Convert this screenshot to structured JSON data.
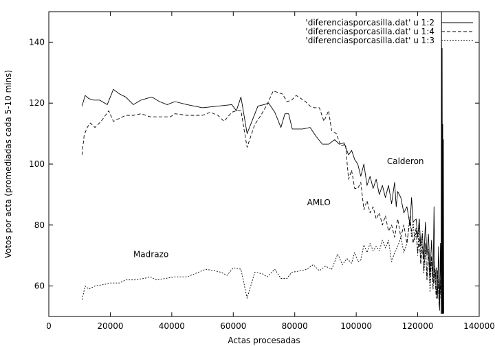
{
  "chart_data": {
    "type": "line",
    "title": "",
    "xlabel": "Actas procesadas",
    "ylabel": "Votos por acta (promediadas cada 5-10 mins)",
    "xlim": [
      0,
      140000
    ],
    "ylim": [
      50,
      150
    ],
    "xticks": [
      0,
      20000,
      40000,
      60000,
      80000,
      100000,
      120000,
      140000
    ],
    "yticks": [
      60,
      80,
      100,
      120,
      140
    ],
    "grid": false,
    "legend_position": "top-right",
    "series": [
      {
        "name": "'diferenciasporcasilla.dat' u 1:2",
        "dash": "solid",
        "points": [
          [
            10800,
            119
          ],
          [
            11800,
            122.5
          ],
          [
            13000,
            121.5
          ],
          [
            14500,
            121
          ],
          [
            16500,
            121
          ],
          [
            19000,
            119.5
          ],
          [
            21000,
            124.5
          ],
          [
            23000,
            123
          ],
          [
            25000,
            122
          ],
          [
            27500,
            119.5
          ],
          [
            30000,
            121
          ],
          [
            33500,
            122
          ],
          [
            36000,
            120.5
          ],
          [
            38500,
            119.5
          ],
          [
            41000,
            120.5
          ],
          [
            45000,
            119.5
          ],
          [
            50000,
            118.5
          ],
          [
            55000,
            119
          ],
          [
            59500,
            119.5
          ],
          [
            61000,
            117.5
          ],
          [
            62500,
            122
          ],
          [
            64500,
            110
          ],
          [
            68000,
            119
          ],
          [
            70000,
            119.5
          ],
          [
            71500,
            120
          ],
          [
            73500,
            117
          ],
          [
            75500,
            112
          ],
          [
            76800,
            116.5
          ],
          [
            78000,
            116.5
          ],
          [
            79200,
            111.5
          ],
          [
            82500,
            111.5
          ],
          [
            85000,
            112
          ],
          [
            87000,
            109
          ],
          [
            89000,
            106.5
          ],
          [
            91000,
            106.5
          ],
          [
            93000,
            108
          ],
          [
            94500,
            106.5
          ],
          [
            96000,
            107
          ],
          [
            97500,
            103
          ],
          [
            98500,
            104.5
          ],
          [
            99500,
            101.5
          ],
          [
            100500,
            100
          ],
          [
            101500,
            96
          ],
          [
            102500,
            100
          ],
          [
            103500,
            93
          ],
          [
            104500,
            96
          ],
          [
            105500,
            92
          ],
          [
            106500,
            95
          ],
          [
            107500,
            90
          ],
          [
            108500,
            93
          ],
          [
            109500,
            89
          ],
          [
            110500,
            93
          ],
          [
            111500,
            87
          ],
          [
            112500,
            94
          ],
          [
            113000,
            86
          ],
          [
            113500,
            91
          ],
          [
            114500,
            89
          ],
          [
            115500,
            84
          ],
          [
            116500,
            86
          ],
          [
            117500,
            80
          ],
          [
            118000,
            89
          ],
          [
            118500,
            81
          ],
          [
            119500,
            82
          ],
          [
            120000,
            76
          ],
          [
            120500,
            82
          ],
          [
            121000,
            73
          ],
          [
            121500,
            77
          ],
          [
            122000,
            69
          ],
          [
            122500,
            81
          ],
          [
            123000,
            70
          ],
          [
            123500,
            77
          ],
          [
            124000,
            64
          ],
          [
            124500,
            75
          ],
          [
            125000,
            62
          ],
          [
            125300,
            86
          ],
          [
            125600,
            61
          ],
          [
            126000,
            66
          ],
          [
            126400,
            56
          ],
          [
            126800,
            73
          ],
          [
            127100,
            52
          ],
          [
            127400,
            74
          ],
          [
            127600,
            51
          ],
          [
            127750,
            152
          ],
          [
            127850,
            51
          ],
          [
            127950,
            138
          ],
          [
            128050,
            51
          ],
          [
            128150,
            113
          ],
          [
            128250,
            51
          ],
          [
            128350,
            108
          ],
          [
            128450,
            51
          ]
        ]
      },
      {
        "name": "'diferenciasporcasilla.dat' u 1:4",
        "dash": "dashed",
        "points": [
          [
            10800,
            103
          ],
          [
            11500,
            109.5
          ],
          [
            12500,
            112
          ],
          [
            13500,
            113.5
          ],
          [
            15000,
            112
          ],
          [
            17000,
            114
          ],
          [
            19500,
            117.5
          ],
          [
            21000,
            114
          ],
          [
            23000,
            115
          ],
          [
            25000,
            116
          ],
          [
            27500,
            116
          ],
          [
            30000,
            116.5
          ],
          [
            33000,
            115.5
          ],
          [
            37000,
            115.5
          ],
          [
            39500,
            115.5
          ],
          [
            41000,
            116.5
          ],
          [
            45000,
            116
          ],
          [
            50000,
            116
          ],
          [
            52500,
            117
          ],
          [
            55000,
            116
          ],
          [
            57000,
            114
          ],
          [
            59500,
            117
          ],
          [
            61000,
            117.5
          ],
          [
            62500,
            117.5
          ],
          [
            64500,
            105.5
          ],
          [
            67000,
            113
          ],
          [
            69000,
            116
          ],
          [
            71000,
            119.5
          ],
          [
            73000,
            124
          ],
          [
            74500,
            123.5
          ],
          [
            76000,
            123
          ],
          [
            77500,
            120.5
          ],
          [
            79000,
            121
          ],
          [
            80500,
            122.5
          ],
          [
            82000,
            121.5
          ],
          [
            83500,
            120.5
          ],
          [
            85000,
            119
          ],
          [
            86500,
            118.5
          ],
          [
            88000,
            118.5
          ],
          [
            89500,
            114
          ],
          [
            91000,
            117.5
          ],
          [
            92000,
            111
          ],
          [
            93500,
            110
          ],
          [
            95000,
            106
          ],
          [
            96500,
            106.5
          ],
          [
            97500,
            95
          ],
          [
            98500,
            98
          ],
          [
            99500,
            92
          ],
          [
            100500,
            92
          ],
          [
            101500,
            94
          ],
          [
            102500,
            85
          ],
          [
            103500,
            88
          ],
          [
            104500,
            84
          ],
          [
            105500,
            86
          ],
          [
            106500,
            82
          ],
          [
            107500,
            84
          ],
          [
            108500,
            80
          ],
          [
            109500,
            83
          ],
          [
            110500,
            78
          ],
          [
            111500,
            80
          ],
          [
            112500,
            76
          ],
          [
            113500,
            82
          ],
          [
            114500,
            76
          ],
          [
            115500,
            80
          ],
          [
            116500,
            74
          ],
          [
            117500,
            82
          ],
          [
            118500,
            74
          ],
          [
            119500,
            79
          ],
          [
            120000,
            71
          ],
          [
            120500,
            76
          ],
          [
            121000,
            67
          ],
          [
            121500,
            73
          ],
          [
            122000,
            65
          ],
          [
            122500,
            74
          ],
          [
            123000,
            62
          ],
          [
            123500,
            71
          ],
          [
            124000,
            61
          ],
          [
            124500,
            70
          ],
          [
            125000,
            60
          ],
          [
            125500,
            66
          ],
          [
            126000,
            56
          ],
          [
            126500,
            65
          ],
          [
            127000,
            53
          ],
          [
            127300,
            62
          ],
          [
            127500,
            56
          ]
        ]
      },
      {
        "name": "'diferenciasporcasilla.dat' u 1:3",
        "dash": "dotted",
        "points": [
          [
            10800,
            55.5
          ],
          [
            11800,
            60
          ],
          [
            13000,
            59
          ],
          [
            15000,
            60
          ],
          [
            18000,
            60.5
          ],
          [
            20000,
            61
          ],
          [
            23000,
            61
          ],
          [
            25000,
            62
          ],
          [
            28000,
            62
          ],
          [
            31000,
            62.5
          ],
          [
            33000,
            63
          ],
          [
            35000,
            62
          ],
          [
            38000,
            62.5
          ],
          [
            41000,
            63
          ],
          [
            45000,
            63
          ],
          [
            47500,
            64
          ],
          [
            51000,
            65.5
          ],
          [
            54000,
            65
          ],
          [
            56000,
            64.5
          ],
          [
            58000,
            63.5
          ],
          [
            60000,
            66
          ],
          [
            62500,
            65.5
          ],
          [
            64500,
            56
          ],
          [
            67000,
            64.5
          ],
          [
            69500,
            64
          ],
          [
            71000,
            63
          ],
          [
            73500,
            65.5
          ],
          [
            75500,
            62.5
          ],
          [
            77500,
            62.5
          ],
          [
            79000,
            64.5
          ],
          [
            82000,
            65
          ],
          [
            84000,
            65.5
          ],
          [
            86000,
            67
          ],
          [
            88000,
            65
          ],
          [
            90000,
            66.5
          ],
          [
            92000,
            65.5
          ],
          [
            94000,
            70.5
          ],
          [
            95500,
            67
          ],
          [
            97000,
            69
          ],
          [
            98500,
            67.5
          ],
          [
            99500,
            71
          ],
          [
            100500,
            68
          ],
          [
            101500,
            68.5
          ],
          [
            102500,
            73.5
          ],
          [
            103500,
            71
          ],
          [
            104500,
            74
          ],
          [
            105500,
            71.5
          ],
          [
            106500,
            73
          ],
          [
            107500,
            71.5
          ],
          [
            108500,
            75
          ],
          [
            109500,
            72.5
          ],
          [
            110500,
            75
          ],
          [
            111500,
            68
          ],
          [
            112500,
            71
          ],
          [
            113500,
            73
          ],
          [
            114500,
            76
          ],
          [
            115500,
            71
          ],
          [
            116500,
            74
          ],
          [
            117500,
            83
          ],
          [
            118000,
            76
          ],
          [
            118500,
            81
          ],
          [
            119000,
            75
          ],
          [
            119500,
            78
          ],
          [
            120000,
            70
          ],
          [
            120500,
            82
          ],
          [
            121000,
            68
          ],
          [
            121500,
            78
          ],
          [
            122000,
            64
          ],
          [
            122500,
            73
          ],
          [
            123000,
            62
          ],
          [
            123500,
            72
          ],
          [
            124000,
            58
          ],
          [
            124500,
            69
          ],
          [
            125000,
            59
          ],
          [
            125500,
            68
          ],
          [
            126000,
            57
          ],
          [
            126500,
            65
          ],
          [
            127000,
            54
          ],
          [
            127300,
            61
          ],
          [
            127500,
            57
          ]
        ]
      }
    ],
    "annotations": [
      {
        "text": "Calderon",
        "x": 110000,
        "y": 100
      },
      {
        "text": "AMLO",
        "x": 84000,
        "y": 86.5
      },
      {
        "text": "Madrazo",
        "x": 27500,
        "y": 69.5
      }
    ]
  }
}
